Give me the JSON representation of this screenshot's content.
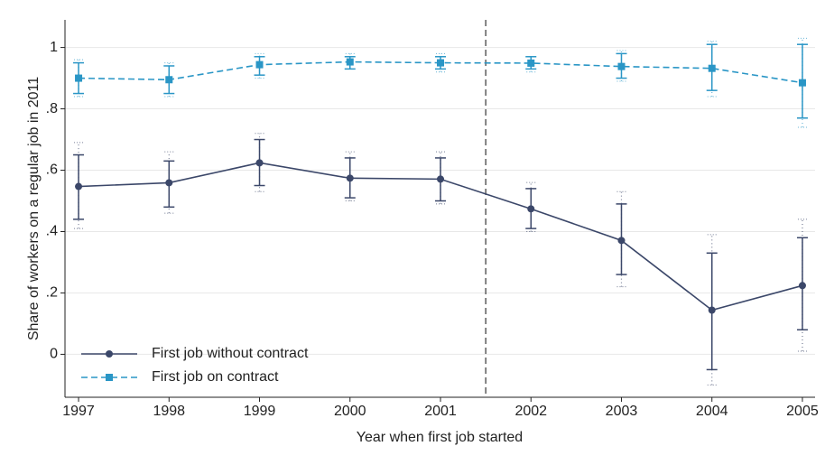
{
  "chart_data": {
    "type": "line",
    "x_label": "Year when first job started",
    "y_label": "Share of workers on a regular job in 2011",
    "x": [
      1997,
      1998,
      1999,
      2000,
      2001,
      2002,
      2003,
      2004,
      2005
    ],
    "xlim": [
      1996.85,
      2005.14
    ],
    "xticks": [
      1997,
      1998,
      1999,
      2000,
      2001,
      2002,
      2003,
      2004,
      2005
    ],
    "ylim": [
      -0.14,
      1.09
    ],
    "yticks": [
      0,
      {
        "value": 0.2,
        "label": ".2"
      },
      {
        "value": 0.4,
        "label": ".4"
      },
      {
        "value": 0.6,
        "label": ".6"
      },
      {
        "value": 0.8,
        "label": ".8"
      },
      1
    ],
    "grid": true,
    "legend": "lower left",
    "vline": 2001.5,
    "series": [
      {
        "name": "First job without contract",
        "color": "#3b4769",
        "marker": "circle",
        "dash": "solid",
        "values": [
          0.547,
          0.559,
          0.624,
          0.574,
          0.571,
          0.474,
          0.371,
          0.144,
          0.224
        ],
        "ci_lower": [
          0.44,
          0.48,
          0.55,
          0.51,
          0.5,
          0.41,
          0.26,
          -0.05,
          0.08
        ],
        "ci_upper": [
          0.65,
          0.63,
          0.7,
          0.64,
          0.64,
          0.54,
          0.49,
          0.33,
          0.38
        ],
        "ci95_lower": [
          0.41,
          0.46,
          0.53,
          0.5,
          0.49,
          0.4,
          0.22,
          -0.1,
          0.01
        ],
        "ci95_upper": [
          0.69,
          0.66,
          0.72,
          0.66,
          0.66,
          0.56,
          0.53,
          0.39,
          0.44
        ]
      },
      {
        "name": "First job on contract",
        "color": "#2a96c6",
        "marker": "square",
        "dash": "dashed",
        "values": [
          0.9,
          0.895,
          0.944,
          0.953,
          0.95,
          0.949,
          0.938,
          0.932,
          0.885
        ],
        "ci_lower": [
          0.85,
          0.85,
          0.91,
          0.93,
          0.93,
          0.93,
          0.9,
          0.86,
          0.77
        ],
        "ci_upper": [
          0.95,
          0.94,
          0.97,
          0.97,
          0.97,
          0.97,
          0.98,
          1.01,
          1.01
        ],
        "ci95_lower": [
          0.84,
          0.84,
          0.9,
          0.93,
          0.92,
          0.92,
          0.89,
          0.84,
          0.74
        ],
        "ci95_upper": [
          0.96,
          0.95,
          0.98,
          0.98,
          0.98,
          0.97,
          0.99,
          1.02,
          1.03
        ]
      }
    ]
  }
}
